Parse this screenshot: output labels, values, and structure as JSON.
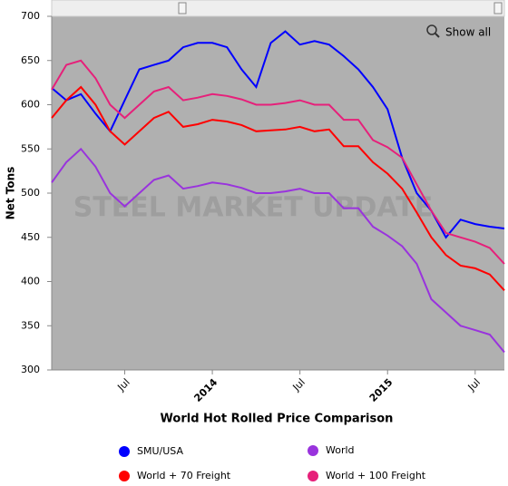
{
  "chart_data": {
    "type": "line",
    "title": "World Hot Rolled Price Comparison",
    "ylabel": "Net Tons",
    "watermark": "STEEL MARKET UPDATE",
    "button": "Show all",
    "x": [
      "2013-02",
      "2013-03",
      "2013-04",
      "2013-05",
      "2013-06",
      "2013-07",
      "2013-08",
      "2013-09",
      "2013-10",
      "2013-11",
      "2013-12",
      "2014-01",
      "2014-02",
      "2014-03",
      "2014-04",
      "2014-05",
      "2014-06",
      "2014-07",
      "2014-08",
      "2014-09",
      "2014-10",
      "2014-11",
      "2014-12",
      "2015-01",
      "2015-02",
      "2015-03",
      "2015-04",
      "2015-05",
      "2015-06",
      "2015-07",
      "2015-08",
      "2015-09"
    ],
    "xlim": [
      "2013-02",
      "2015-09"
    ],
    "xticks": [
      {
        "value": "2013-07",
        "label": "Jul"
      },
      {
        "value": "2014-01",
        "label": "2014"
      },
      {
        "value": "2014-07",
        "label": "Jul"
      },
      {
        "value": "2015-01",
        "label": "2015"
      },
      {
        "value": "2015-07",
        "label": "Jul"
      }
    ],
    "ylim": [
      300,
      700
    ],
    "yticks": [
      300,
      350,
      400,
      450,
      500,
      550,
      600,
      650,
      700
    ],
    "grid": false,
    "series": [
      {
        "name": "SMU/USA",
        "color": "#0000ff",
        "values": [
          619,
          605,
          612,
          590,
          570,
          605,
          640,
          645,
          650,
          665,
          670,
          670,
          665,
          640,
          620,
          670,
          683,
          668,
          672,
          668,
          655,
          640,
          620,
          595,
          540,
          500,
          480,
          450,
          470,
          465,
          462,
          460
        ]
      },
      {
        "name": "World",
        "color": "#9933dd",
        "values": [
          512,
          535,
          550,
          530,
          500,
          485,
          500,
          515,
          520,
          505,
          508,
          512,
          510,
          506,
          500,
          500,
          502,
          505,
          500,
          500,
          483,
          483,
          462,
          452,
          440,
          420,
          380,
          365,
          350,
          345,
          340,
          320
        ]
      },
      {
        "name": "World + 70 Freight",
        "color": "#ff0000",
        "values": [
          585,
          605,
          620,
          600,
          570,
          555,
          570,
          585,
          592,
          575,
          578,
          583,
          581,
          577,
          570,
          571,
          572,
          575,
          570,
          572,
          553,
          553,
          535,
          522,
          505,
          478,
          450,
          430,
          418,
          415,
          408,
          390
        ]
      },
      {
        "name": "World + 100 Freight",
        "color": "#e6207a",
        "values": [
          617,
          645,
          650,
          630,
          600,
          585,
          600,
          615,
          620,
          605,
          608,
          612,
          610,
          606,
          600,
          600,
          602,
          605,
          600,
          600,
          583,
          583,
          560,
          552,
          540,
          510,
          480,
          455,
          450,
          445,
          438,
          420
        ]
      }
    ]
  }
}
